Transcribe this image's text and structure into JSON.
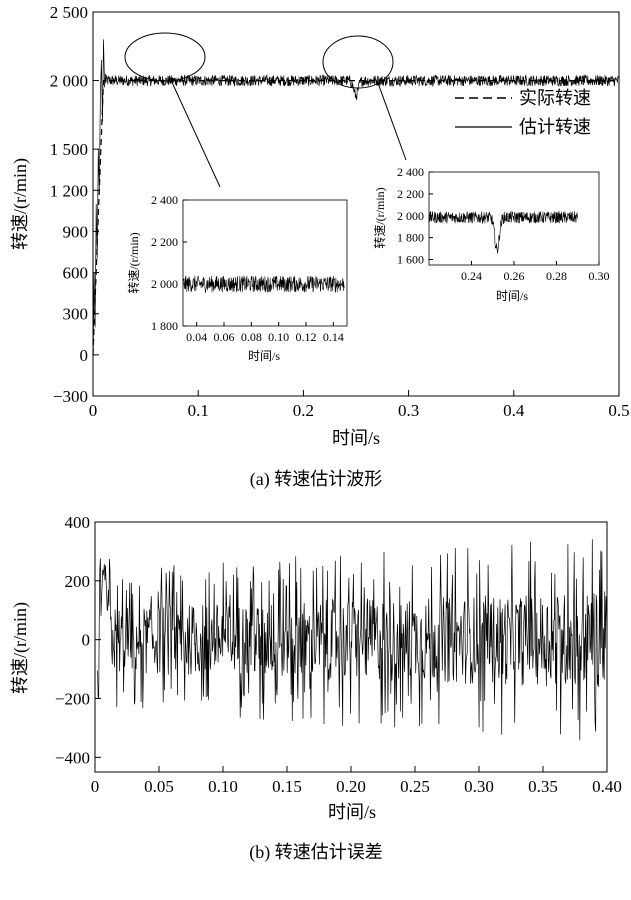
{
  "chart_data": [
    {
      "id": "a",
      "type": "line",
      "caption": "(a) 转速估计波形",
      "xlabel": "时间/s",
      "ylabel": "转速/(r/min)",
      "xlim": [
        0,
        0.5
      ],
      "ylim": [
        -300,
        2500
      ],
      "xticks": [
        "0",
        "0.1",
        "0.2",
        "0.3",
        "0.4",
        "0.5"
      ],
      "xtick_values": [
        0,
        0.1,
        0.2,
        0.3,
        0.4,
        0.5
      ],
      "yticks": [
        "−300",
        "0",
        "300",
        "600",
        "900",
        "1 200",
        "1 500",
        "2 000",
        "2 500"
      ],
      "ytick_values": [
        -300,
        0,
        300,
        600,
        900,
        1200,
        1500,
        2000,
        2500
      ],
      "legend": [
        {
          "label": "实际转速",
          "style": "dashed"
        },
        {
          "label": "估计转速",
          "style": "solid"
        }
      ],
      "series": [
        {
          "name": "实际转速",
          "style": "dashed",
          "x": [
            0,
            0.01,
            0.5
          ],
          "y": [
            0,
            2000,
            2000
          ]
        },
        {
          "name": "估计转速",
          "style": "solid",
          "steady_value": 2000,
          "noise_amplitude": 40,
          "startup_overshoot_peak": 2300,
          "startup_min": -120,
          "dip_time": 0.25,
          "dip_min": 1880
        }
      ],
      "insets": [
        {
          "xlabel": "时间/s",
          "ylabel": "转速/(r/min)",
          "xlim": [
            0.03,
            0.15
          ],
          "ylim": [
            1800,
            2400
          ],
          "xticks": [
            "0.04",
            "0.06",
            "0.08",
            "0.10",
            "0.12",
            "0.14"
          ],
          "xtick_values": [
            0.04,
            0.06,
            0.08,
            0.1,
            0.12,
            0.14
          ],
          "yticks": [
            "1 800",
            "2 000",
            "2 200",
            "2 400"
          ],
          "ytick_values": [
            1800,
            2000,
            2200,
            2400
          ],
          "series_range": [
            0.03,
            0.148
          ],
          "steady_value": 2000,
          "noise_amplitude": 40
        },
        {
          "xlabel": "时间/s",
          "ylabel": "转速/(r/min)",
          "xlim": [
            0.22,
            0.3
          ],
          "ylim": [
            1550,
            2400
          ],
          "xticks": [
            "0.24",
            "0.26",
            "0.28",
            "0.30"
          ],
          "xtick_values": [
            0.24,
            0.26,
            0.28,
            0.3
          ],
          "yticks": [
            "1 600",
            "1 800",
            "2 000",
            "2 200",
            "2 400"
          ],
          "ytick_values": [
            1600,
            1800,
            2000,
            2200,
            2400
          ],
          "series_range": [
            0.22,
            0.29
          ],
          "steady_value": 1985,
          "noise_amplitude": 55,
          "dip_time": 0.252,
          "dip_min": 1650
        }
      ]
    },
    {
      "id": "b",
      "type": "line",
      "caption": "(b) 转速估计误差",
      "xlabel": "时间/s",
      "ylabel": "转速/(r/min)",
      "xlim": [
        0,
        0.4
      ],
      "ylim": [
        -450,
        400
      ],
      "xticks": [
        "0",
        "0.05",
        "0.10",
        "0.15",
        "0.20",
        "0.25",
        "0.30",
        "0.35",
        "0.40"
      ],
      "xtick_values": [
        0,
        0.05,
        0.1,
        0.15,
        0.2,
        0.25,
        0.3,
        0.35,
        0.4
      ],
      "yticks": [
        "−400",
        "−200",
        "0",
        "200",
        "400"
      ],
      "ytick_values": [
        -400,
        -200,
        0,
        200,
        400
      ],
      "series": [
        {
          "name": "",
          "style": "solid",
          "x_range": [
            0,
            0.4
          ],
          "envelope_max": 370,
          "envelope_min": -350,
          "mean": 0
        }
      ]
    }
  ]
}
